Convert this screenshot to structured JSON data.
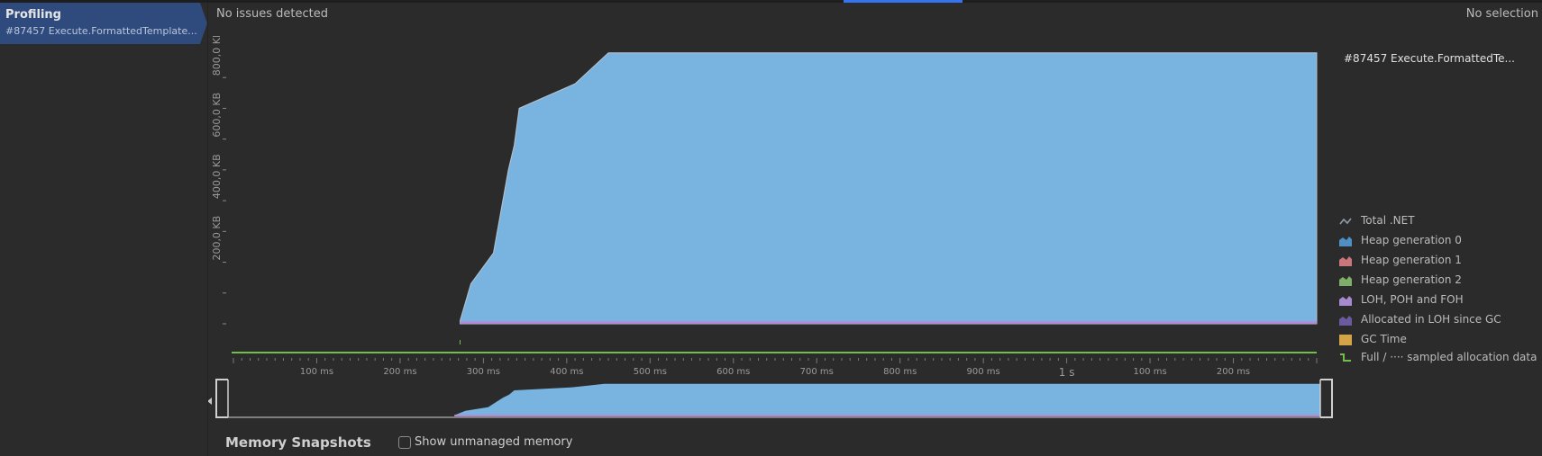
{
  "sidebar": {
    "tab_title": "Profiling",
    "tab_subtitle": "#87457 Execute.FormattedTemplate...."
  },
  "header": {
    "status_left": "No issues detected",
    "status_right": "No selection"
  },
  "chart": {
    "session_label": "#87457 Execute.FormattedTe...",
    "y_tick_labels": [
      "200,0 KB",
      "400,0 KB",
      "600,0 KB",
      "800,0 KB"
    ],
    "x_tick_labels": [
      "100 ms",
      "200 ms",
      "300 ms",
      "400 ms",
      "500 ms",
      "600 ms",
      "700 ms",
      "800 ms",
      "900 ms",
      "1 s",
      "100 ms",
      "200 ms"
    ]
  },
  "legend": {
    "items": [
      {
        "label": "Total .NET",
        "icon": "total-net-icon",
        "color": "#8e9aa8"
      },
      {
        "label": "Heap generation 0",
        "icon": "heap-gen0-icon",
        "color": "#4e8fc4"
      },
      {
        "label": "Heap generation 1",
        "icon": "heap-gen1-icon",
        "color": "#c9777a"
      },
      {
        "label": "Heap generation 2",
        "icon": "heap-gen2-icon",
        "color": "#7fae6a"
      },
      {
        "label": "LOH, POH and FOH",
        "icon": "loh-icon",
        "color": "#a58acf"
      },
      {
        "label": "Allocated in LOH since GC",
        "icon": "allocated-loh-icon",
        "color": "#6c5a9e"
      },
      {
        "label": "GC Time",
        "icon": "gc-time-icon",
        "color": "#d4a548"
      },
      {
        "label": "Full / ···· sampled allocation data",
        "icon": "allocation-data-icon",
        "color": "#6fbf4a"
      }
    ]
  },
  "colors": {
    "heap_fill": "#79b4e0",
    "loh_band": "#b48ad6",
    "gc_line": "#6fbf4a",
    "accent": "#3574f0"
  },
  "bottom": {
    "snapshots_title": "Memory Snapshots",
    "show_unmanaged_label": "Show unmanaged memory"
  },
  "chart_data": {
    "type": "area",
    "ylabel": "",
    "xlabel": "",
    "x_unit": "ms",
    "xlim": [
      0,
      1300
    ],
    "ylim": [
      0,
      900
    ],
    "y_ticks": [
      200,
      400,
      600,
      800
    ],
    "series": [
      {
        "name": "Heap generation 0",
        "x": [
          272,
          285,
          312,
          322,
          330,
          337,
          343,
          410,
          450,
          1300
        ],
        "values": [
          10,
          130,
          230,
          380,
          500,
          580,
          700,
          780,
          880,
          880
        ]
      },
      {
        "name": "LOH, POH and FOH",
        "x": [
          272,
          1300
        ],
        "values": [
          8,
          8
        ]
      }
    ]
  }
}
